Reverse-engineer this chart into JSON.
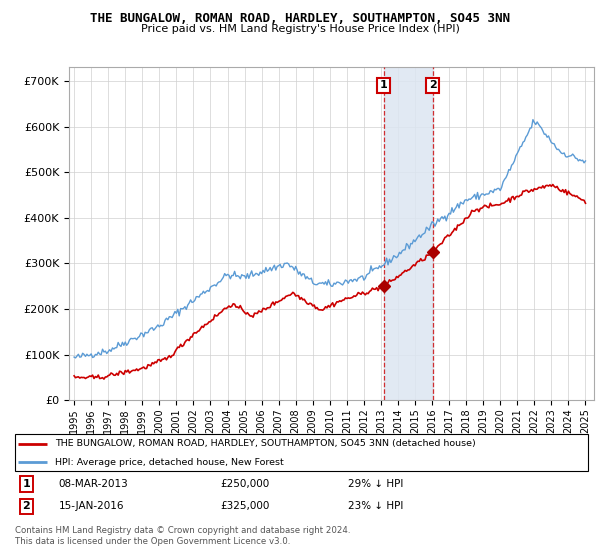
{
  "title1": "THE BUNGALOW, ROMAN ROAD, HARDLEY, SOUTHAMPTON, SO45 3NN",
  "title2": "Price paid vs. HM Land Registry's House Price Index (HPI)",
  "ylabel_ticks": [
    "£0",
    "£100K",
    "£200K",
    "£300K",
    "£400K",
    "£500K",
    "£600K",
    "£700K"
  ],
  "ytick_values": [
    0,
    100000,
    200000,
    300000,
    400000,
    500000,
    600000,
    700000
  ],
  "ylim": [
    0,
    730000
  ],
  "hpi_color": "#5b9bd5",
  "price_color": "#cc0000",
  "shade_color": "#dce6f1",
  "sale1_year": 2013.17,
  "sale1_price": 250000,
  "sale2_year": 2016.04,
  "sale2_price": 325000,
  "legend_line1": "THE BUNGALOW, ROMAN ROAD, HARDLEY, SOUTHAMPTON, SO45 3NN (detached house)",
  "legend_line2": "HPI: Average price, detached house, New Forest",
  "footer": "Contains HM Land Registry data © Crown copyright and database right 2024.\nThis data is licensed under the Open Government Licence v3.0.",
  "bg_color": "#ffffff",
  "grid_color": "#d0d0d0"
}
